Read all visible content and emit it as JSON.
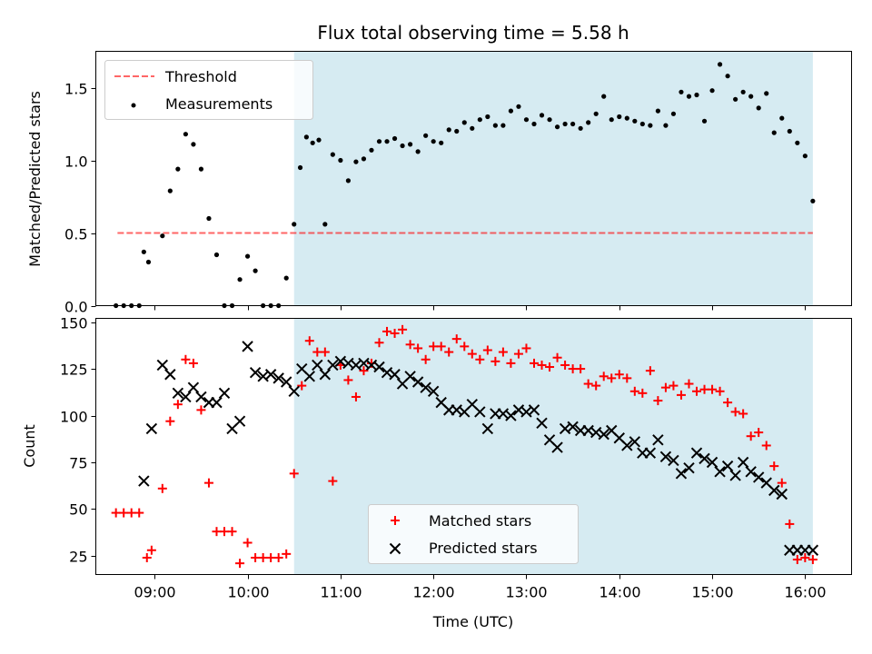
{
  "colors": {
    "observing_span": "#add8e6",
    "threshold": "#ff0000",
    "measurements": "#000000",
    "matched": "#ff0000",
    "predicted": "#000000"
  },
  "chart_data": [
    {
      "type": "scatter",
      "title": "Flux total observing time = 5.58 h",
      "xlabel": "",
      "ylabel": "Matched/Predicted stars",
      "x_unit": "time of day (UTC)",
      "xlim": [
        "08:22",
        "16:30"
      ],
      "ylim": [
        0,
        1.75
      ],
      "x_ticks": [
        "09:00",
        "10:00",
        "11:00",
        "12:00",
        "13:00",
        "14:00",
        "15:00",
        "16:00"
      ],
      "y_ticks": [
        0.0,
        0.5,
        1.0,
        1.5
      ],
      "y_tick_labels": [
        "0.0",
        "0.5",
        "1.0",
        "1.5"
      ],
      "shaded_span": [
        "10:30",
        "16:05"
      ],
      "legend_position": "upper left",
      "series": [
        {
          "name": "Threshold",
          "style": "dashed-line",
          "x": [
            "08:36",
            "16:05"
          ],
          "y": [
            0.5,
            0.5
          ]
        },
        {
          "name": "Measurements",
          "style": "dot",
          "x": [
            "08:35",
            "08:40",
            "08:45",
            "08:50",
            "08:53",
            "08:56",
            "09:05",
            "09:10",
            "09:15",
            "09:20",
            "09:25",
            "09:30",
            "09:35",
            "09:40",
            "09:45",
            "09:50",
            "09:55",
            "10:00",
            "10:05",
            "10:10",
            "10:15",
            "10:20",
            "10:25",
            "10:30",
            "10:34",
            "10:38",
            "10:42",
            "10:46",
            "10:50",
            "10:55",
            "11:00",
            "11:05",
            "11:10",
            "11:15",
            "11:20",
            "11:25",
            "11:30",
            "11:35",
            "11:40",
            "11:45",
            "11:50",
            "11:55",
            "12:00",
            "12:05",
            "12:10",
            "12:15",
            "12:20",
            "12:25",
            "12:30",
            "12:35",
            "12:40",
            "12:45",
            "12:50",
            "12:55",
            "13:00",
            "13:05",
            "13:10",
            "13:15",
            "13:20",
            "13:25",
            "13:30",
            "13:35",
            "13:40",
            "13:45",
            "13:50",
            "13:55",
            "14:00",
            "14:05",
            "14:10",
            "14:15",
            "14:20",
            "14:25",
            "14:30",
            "14:35",
            "14:40",
            "14:45",
            "14:50",
            "14:55",
            "15:00",
            "15:05",
            "15:10",
            "15:15",
            "15:20",
            "15:25",
            "15:30",
            "15:35",
            "15:40",
            "15:45",
            "15:50",
            "15:55",
            "16:00",
            "16:05"
          ],
          "y": [
            0,
            0,
            0,
            0,
            0.37,
            0.3,
            0.48,
            0.79,
            0.94,
            1.18,
            1.11,
            0.94,
            0.6,
            0.35,
            0,
            0,
            0.18,
            0.34,
            0.24,
            0,
            0,
            0,
            0.19,
            0.56,
            0.95,
            1.16,
            1.12,
            1.14,
            0.56,
            1.04,
            1.0,
            0.86,
            0.99,
            1.01,
            1.07,
            1.13,
            1.13,
            1.15,
            1.1,
            1.11,
            1.06,
            1.17,
            1.13,
            1.12,
            1.21,
            1.2,
            1.26,
            1.22,
            1.28,
            1.3,
            1.24,
            1.24,
            1.34,
            1.37,
            1.28,
            1.25,
            1.31,
            1.28,
            1.23,
            1.25,
            1.25,
            1.22,
            1.26,
            1.32,
            1.44,
            1.28,
            1.3,
            1.29,
            1.27,
            1.25,
            1.24,
            1.34,
            1.24,
            1.32,
            1.47,
            1.44,
            1.45,
            1.27,
            1.48,
            1.66,
            1.58,
            1.42,
            1.47,
            1.44,
            1.36,
            1.46,
            1.19,
            1.29,
            1.2,
            1.12,
            1.03,
            0.72
          ]
        }
      ]
    },
    {
      "type": "scatter",
      "title": "",
      "xlabel": "Time (UTC)",
      "ylabel": "Count",
      "x_unit": "time of day (UTC)",
      "xlim": [
        "08:22",
        "16:30"
      ],
      "ylim": [
        15,
        152
      ],
      "x_ticks": [
        "09:00",
        "10:00",
        "11:00",
        "12:00",
        "13:00",
        "14:00",
        "15:00",
        "16:00"
      ],
      "y_ticks": [
        25,
        50,
        75,
        100,
        125,
        150
      ],
      "y_tick_labels": [
        "25",
        "50",
        "75",
        "100",
        "125",
        "150"
      ],
      "shaded_span": [
        "10:30",
        "16:05"
      ],
      "legend_position": "lower center",
      "series": [
        {
          "name": "Matched stars",
          "marker": "plus",
          "x": [
            "08:35",
            "08:40",
            "08:45",
            "08:50",
            "08:55",
            "08:58",
            "09:05",
            "09:10",
            "09:15",
            "09:20",
            "09:25",
            "09:30",
            "09:35",
            "09:40",
            "09:45",
            "09:50",
            "09:55",
            "10:00",
            "10:05",
            "10:10",
            "10:15",
            "10:20",
            "10:25",
            "10:30",
            "10:35",
            "10:40",
            "10:45",
            "10:50",
            "10:55",
            "11:00",
            "11:05",
            "11:10",
            "11:15",
            "11:20",
            "11:25",
            "11:30",
            "11:35",
            "11:40",
            "11:45",
            "11:50",
            "11:55",
            "12:00",
            "12:05",
            "12:10",
            "12:15",
            "12:20",
            "12:25",
            "12:30",
            "12:35",
            "12:40",
            "12:45",
            "12:50",
            "12:55",
            "13:00",
            "13:05",
            "13:10",
            "13:15",
            "13:20",
            "13:25",
            "13:30",
            "13:35",
            "13:40",
            "13:45",
            "13:50",
            "13:55",
            "14:00",
            "14:05",
            "14:10",
            "14:15",
            "14:20",
            "14:25",
            "14:30",
            "14:35",
            "14:40",
            "14:45",
            "14:50",
            "14:55",
            "15:00",
            "15:05",
            "15:10",
            "15:15",
            "15:20",
            "15:25",
            "15:30",
            "15:35",
            "15:40",
            "15:45",
            "15:50",
            "15:55",
            "16:00",
            "16:05"
          ],
          "y": [
            48,
            48,
            48,
            48,
            24,
            28,
            61,
            97,
            106,
            130,
            128,
            103,
            64,
            38,
            38,
            38,
            21,
            32,
            24,
            24,
            24,
            24,
            26,
            69,
            116,
            140,
            134,
            134,
            65,
            127,
            119,
            110,
            124,
            128,
            139,
            145,
            144,
            146,
            138,
            136,
            130,
            137,
            137,
            134,
            141,
            137,
            133,
            130,
            135,
            129,
            134,
            128,
            133,
            136,
            128,
            127,
            126,
            131,
            127,
            125,
            125,
            117,
            116,
            121,
            120,
            122,
            120,
            113,
            112,
            124,
            108,
            115,
            116,
            111,
            117,
            113,
            114,
            114,
            113,
            107,
            102,
            101,
            89,
            91,
            84,
            73,
            64,
            42,
            23,
            24,
            23
          ]
        },
        {
          "name": "Predicted stars",
          "marker": "x",
          "x": [
            "08:53",
            "08:58",
            "09:05",
            "09:10",
            "09:15",
            "09:20",
            "09:25",
            "09:30",
            "09:35",
            "09:40",
            "09:45",
            "09:50",
            "09:55",
            "10:00",
            "10:05",
            "10:10",
            "10:15",
            "10:20",
            "10:25",
            "10:30",
            "10:35",
            "10:40",
            "10:45",
            "10:50",
            "10:55",
            "11:00",
            "11:05",
            "11:10",
            "11:15",
            "11:20",
            "11:25",
            "11:30",
            "11:35",
            "11:40",
            "11:45",
            "11:50",
            "11:55",
            "12:00",
            "12:05",
            "12:10",
            "12:15",
            "12:20",
            "12:25",
            "12:30",
            "12:35",
            "12:40",
            "12:45",
            "12:50",
            "12:55",
            "13:00",
            "13:05",
            "13:10",
            "13:15",
            "13:20",
            "13:25",
            "13:30",
            "13:35",
            "13:40",
            "13:45",
            "13:50",
            "13:55",
            "14:00",
            "14:05",
            "14:10",
            "14:15",
            "14:20",
            "14:25",
            "14:30",
            "14:35",
            "14:40",
            "14:45",
            "14:50",
            "14:55",
            "15:00",
            "15:05",
            "15:10",
            "15:15",
            "15:20",
            "15:25",
            "15:30",
            "15:35",
            "15:40",
            "15:45",
            "15:50",
            "15:55",
            "16:00",
            "16:05"
          ],
          "y": [
            65,
            93,
            127,
            122,
            112,
            110,
            115,
            110,
            107,
            107,
            112,
            93,
            97,
            137,
            123,
            121,
            122,
            120,
            118,
            113,
            125,
            121,
            127,
            122,
            127,
            129,
            128,
            127,
            128,
            127,
            126,
            123,
            122,
            117,
            121,
            118,
            115,
            113,
            107,
            103,
            103,
            102,
            106,
            102,
            93,
            101,
            101,
            100,
            103,
            102,
            103,
            96,
            87,
            83,
            93,
            94,
            92,
            92,
            91,
            90,
            92,
            88,
            84,
            86,
            80,
            80,
            87,
            78,
            76,
            69,
            72,
            80,
            77,
            75,
            70,
            73,
            68,
            75,
            70,
            67,
            64,
            60,
            58,
            28,
            28,
            28,
            28
          ]
        }
      ]
    }
  ]
}
